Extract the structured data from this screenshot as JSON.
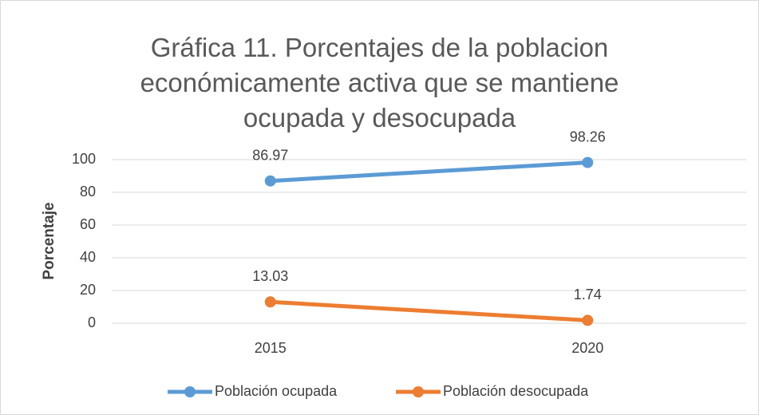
{
  "chart_data": {
    "type": "line",
    "title": "Gráfica 11. Porcentajes de la poblacion económicamente activa que se mantiene ocupada y desocupada",
    "y_label": "Porcentaje",
    "categories": [
      "2015",
      "2020"
    ],
    "series": [
      {
        "name": "Población ocupada",
        "color": "#5b9bd5",
        "values": [
          86.97,
          98.26
        ]
      },
      {
        "name": "Población desocupada",
        "color": "#ed7d31",
        "values": [
          13.03,
          1.74
        ]
      }
    ],
    "ylim": [
      0,
      100
    ],
    "yticks": [
      0,
      20,
      40,
      60,
      80,
      100
    ],
    "grid": true,
    "legend": "bottom"
  }
}
